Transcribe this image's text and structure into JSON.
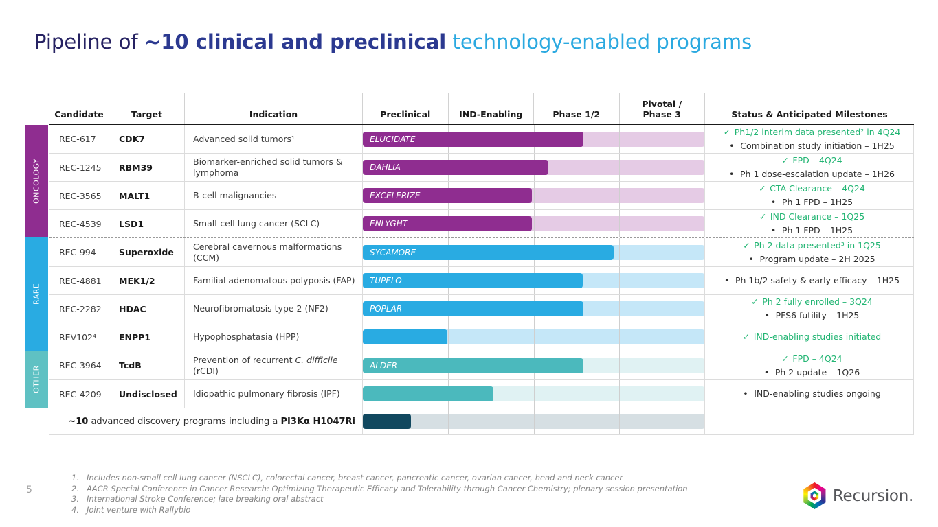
{
  "page_number": "5",
  "title": {
    "part1": "Pipeline of ",
    "part2": "~10 clinical and preclinical",
    "part3": " technology-enabled programs"
  },
  "header": {
    "cols": [
      "Candidate",
      "Target",
      "Indication",
      "Preclinical",
      "IND-Enabling",
      "Phase 1/2",
      "Pivotal /\nPhase 3",
      "Status & Anticipated Milestones"
    ]
  },
  "table": {
    "sections": [
      {
        "label": "ONCOLOGY",
        "strip": "#8F2D90",
        "color": "#8F2D90",
        "track": "#E5CBE5",
        "rows": [
          {
            "candidate": "REC-617",
            "target": "CDK7",
            "indication": "Advanced solid tumors¹",
            "trial_name": "ELUCIDATE",
            "bar_width": "64.5%",
            "status": [
              {
                "kind": "done",
                "marker": "✓",
                "text": "Ph1/2 interim data presented² in 4Q24"
              },
              {
                "kind": "next",
                "marker": "•",
                "text": "Combination study initiation – 1H25"
              }
            ]
          },
          {
            "candidate": "REC-1245",
            "target": "RBM39",
            "indication": "Biomarker-enriched solid tumors & lymphoma",
            "trial_name": "DAHLIA",
            "bar_width": "54.4%",
            "status": [
              {
                "kind": "done",
                "marker": "✓",
                "text": "FPD – 4Q24"
              },
              {
                "kind": "next",
                "marker": "•",
                "text": "Ph 1 dose-escalation update – 1H26"
              }
            ]
          },
          {
            "candidate": "REC-3565",
            "target": "MALT1",
            "indication": "B-cell malignancies",
            "trial_name": "EXCELERIZE",
            "bar_width": "49.4%",
            "status": [
              {
                "kind": "done",
                "marker": "✓",
                "text": "CTA Clearance – 4Q24"
              },
              {
                "kind": "next",
                "marker": "•",
                "text": "Ph 1 FPD – 1H25"
              }
            ]
          },
          {
            "candidate": "REC-4539",
            "target": "LSD1",
            "indication": "Small-cell lung cancer (SCLC)",
            "trial_name": "ENLYGHT",
            "bar_width": "49.4%",
            "status": [
              {
                "kind": "done",
                "marker": "✓",
                "text": "IND Clearance – 1Q25"
              },
              {
                "kind": "next",
                "marker": "•",
                "text": "Ph 1 FPD – 1H25"
              }
            ]
          }
        ]
      },
      {
        "label": "RARE",
        "strip": "#29ABE2",
        "color": "#29ABE2",
        "track": "#C5E7F8",
        "rows": [
          {
            "candidate": "REC-994",
            "target": "Superoxide",
            "indication": "Cerebral cavernous malformations (CCM)",
            "trial_name": "SYCAMORE",
            "bar_width": "73.5%",
            "status": [
              {
                "kind": "done",
                "marker": "✓",
                "text": "Ph 2 data presented³ in 1Q25"
              },
              {
                "kind": "next",
                "marker": "•",
                "text": "Program update – 2H 2025"
              }
            ]
          },
          {
            "candidate": "REC-4881",
            "target": "MEK1/2",
            "indication": "Familial adenomatous polyposis (FAP)",
            "trial_name": "TUPELO",
            "bar_width": "64.3%",
            "status": [
              {
                "kind": "next",
                "marker": "•",
                "text": "Ph 1b/2 safety & early efficacy – 1H25"
              }
            ]
          },
          {
            "candidate": "REC-2282",
            "target": "HDAC",
            "indication": "Neurofibromatosis type 2 (NF2)",
            "trial_name": "POPLAR",
            "bar_width": "64.5%",
            "status": [
              {
                "kind": "done",
                "marker": "✓",
                "text": "Ph 2 fully enrolled – 3Q24"
              },
              {
                "kind": "next",
                "marker": "•",
                "text": "PFS6 futility – 1H25"
              }
            ]
          },
          {
            "candidate": "REV102⁴",
            "target": "ENPP1",
            "indication": "Hypophosphatasia (HPP)",
            "trial_name": "",
            "bar_width": "24.7%",
            "status": [
              {
                "kind": "done",
                "marker": "✓",
                "text": "IND-enabling studies initiated"
              }
            ]
          }
        ]
      },
      {
        "label": "OTHER",
        "strip": "#5FC1C3",
        "color": "#4BB9BD",
        "track": "#E0F2F3",
        "rows": [
          {
            "candidate": "REC-3964",
            "target": "TcdB",
            "ind_pre": "Prevention of recurrent ",
            "ind_italic": "C. difficile",
            "ind_post": " (rCDI)",
            "trial_name": "ALDER",
            "bar_width": "64.5%",
            "status": [
              {
                "kind": "done",
                "marker": "✓",
                "text": "FPD – 4Q24"
              },
              {
                "kind": "next",
                "marker": "•",
                "text": "Ph 2 update – 1Q26"
              }
            ]
          },
          {
            "candidate": "REC-4209",
            "target": "Undisclosed",
            "indication": "Idiopathic pulmonary fibrosis (IPF)",
            "trial_name": "",
            "bar_width": "38.2%",
            "status": [
              {
                "kind": "next",
                "marker": "•",
                "text": "IND-enabling studies ongoing"
              }
            ]
          }
        ]
      }
    ]
  },
  "discovery": {
    "bold1": "~10",
    "mid": " advanced discovery programs including a ",
    "bold2": "PI3Kα H1047Ri",
    "bar_width": "14.1%",
    "color": "#11485F",
    "track": "#D6DFE3"
  },
  "footnotes": [
    {
      "num": "1.",
      "text": "Includes non-small cell lung cancer (NSCLC), colorectal cancer, breast cancer, pancreatic cancer, ovarian cancer, head and neck cancer"
    },
    {
      "num": "2.",
      "text": "AACR Special Conference in Cancer Research: Optimizing Therapeutic Efficacy and Tolerability through Cancer Chemistry; plenary session presentation"
    },
    {
      "num": "3.",
      "text": "International Stroke Conference; late breaking oral abstract"
    },
    {
      "num": "4.",
      "text": "Joint venture with Rallybio"
    }
  ],
  "logo": {
    "text": "Recursion."
  }
}
